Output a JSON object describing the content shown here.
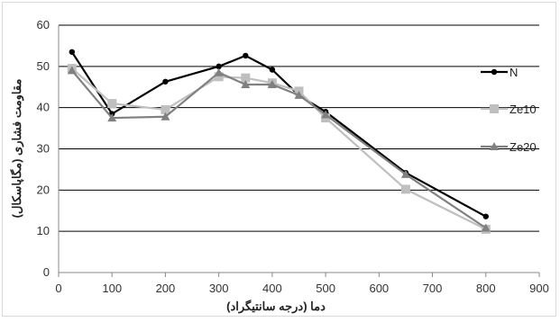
{
  "chart_data": {
    "type": "line",
    "title": "",
    "xlabel": "دما (درجه سانتیگراد)",
    "ylabel": "مقاومت فشاری (مگاپاسکال)",
    "xlim": [
      0,
      900
    ],
    "ylim": [
      0,
      60
    ],
    "x_ticks": [
      0,
      100,
      200,
      300,
      400,
      500,
      600,
      700,
      800,
      900
    ],
    "y_ticks": [
      0,
      10,
      20,
      30,
      40,
      50,
      60
    ],
    "grid": "horizontal",
    "legend_position": "right",
    "series": [
      {
        "name": "N",
        "color": "#000000",
        "marker": "circle",
        "x": [
          25,
          100,
          200,
          300,
          350,
          400,
          450,
          500,
          650,
          800
        ],
        "y": [
          53.5,
          38.5,
          46.3,
          50,
          52.6,
          49.2,
          43,
          39,
          24.2,
          13.6
        ]
      },
      {
        "name": "Ze10",
        "color": "#bfbfbf",
        "marker": "square",
        "x": [
          25,
          100,
          200,
          300,
          350,
          400,
          450,
          500,
          650,
          800
        ],
        "y": [
          49.5,
          41,
          39.5,
          47.5,
          47.2,
          46,
          44,
          37.5,
          20.2,
          10.5
        ]
      },
      {
        "name": "Ze20",
        "color": "#808080",
        "marker": "triangle",
        "x": [
          25,
          100,
          200,
          300,
          350,
          400,
          450,
          500,
          650,
          800
        ],
        "y": [
          49,
          37.5,
          37.8,
          48.5,
          45.6,
          45.6,
          43,
          38.3,
          23.8,
          10.8
        ]
      }
    ]
  }
}
